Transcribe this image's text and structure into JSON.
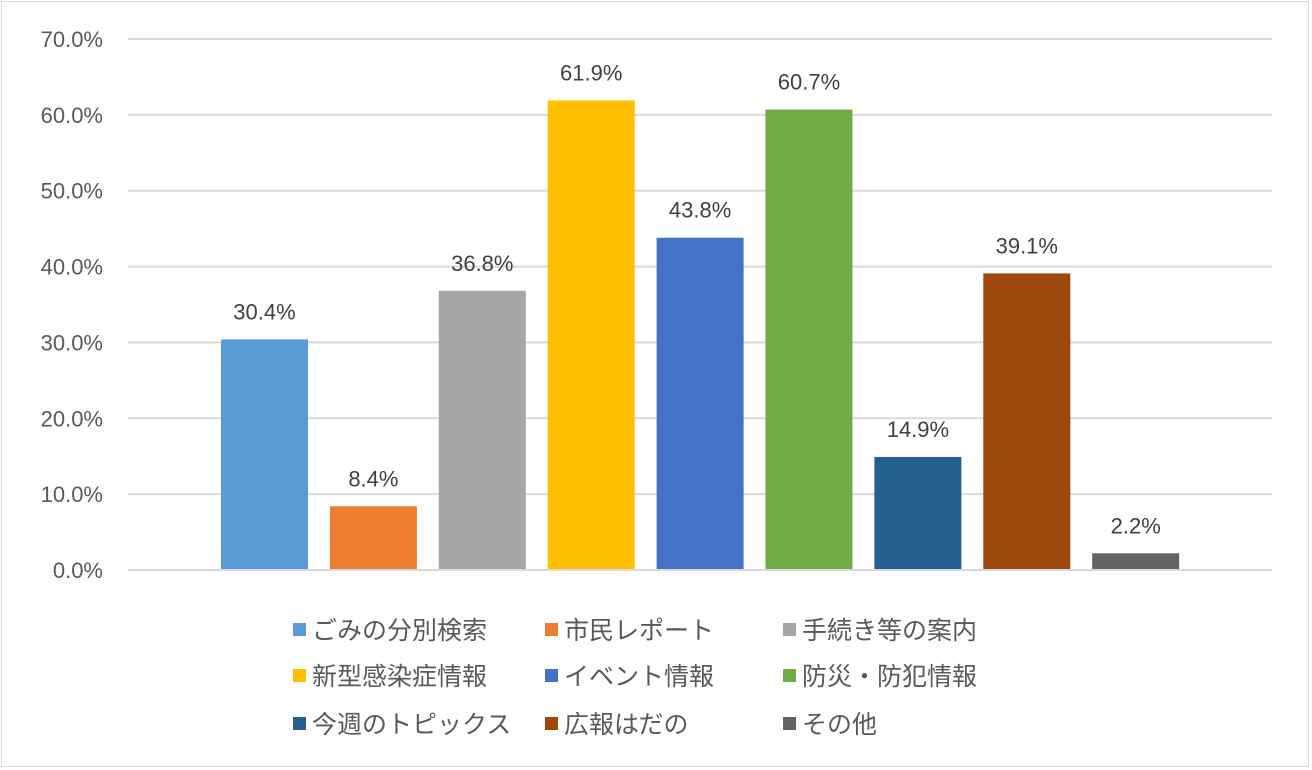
{
  "chart_data": {
    "type": "bar",
    "title": "",
    "xlabel": "",
    "ylabel": "",
    "ylim": [
      0,
      70
    ],
    "yticks": [
      "0.0%",
      "10.0%",
      "20.0%",
      "30.0%",
      "40.0%",
      "50.0%",
      "60.0%",
      "70.0%"
    ],
    "grid": true,
    "legend_position": "bottom",
    "series": [
      {
        "name": "ごみの分別検索",
        "value": 30.4,
        "label": "30.4%",
        "color": "#5B9BD5"
      },
      {
        "name": "市民レポート",
        "value": 8.4,
        "label": "8.4%",
        "color": "#ED7D31"
      },
      {
        "name": "手続き等の案内",
        "value": 36.8,
        "label": "36.8%",
        "color": "#A5A5A5"
      },
      {
        "name": "新型感染症情報",
        "value": 61.9,
        "label": "61.9%",
        "color": "#FFC000"
      },
      {
        "name": "イベント情報",
        "value": 43.8,
        "label": "43.8%",
        "color": "#4472C4"
      },
      {
        "name": "防災・防犯情報",
        "value": 60.7,
        "label": "60.7%",
        "color": "#70AD47"
      },
      {
        "name": "今週のトピックス",
        "value": 14.9,
        "label": "14.9%",
        "color": "#255E91"
      },
      {
        "name": "広報はだの",
        "value": 39.1,
        "label": "39.1%",
        "color": "#9E480E"
      },
      {
        "name": "その他",
        "value": 2.2,
        "label": "2.2%",
        "color": "#636363"
      }
    ]
  }
}
